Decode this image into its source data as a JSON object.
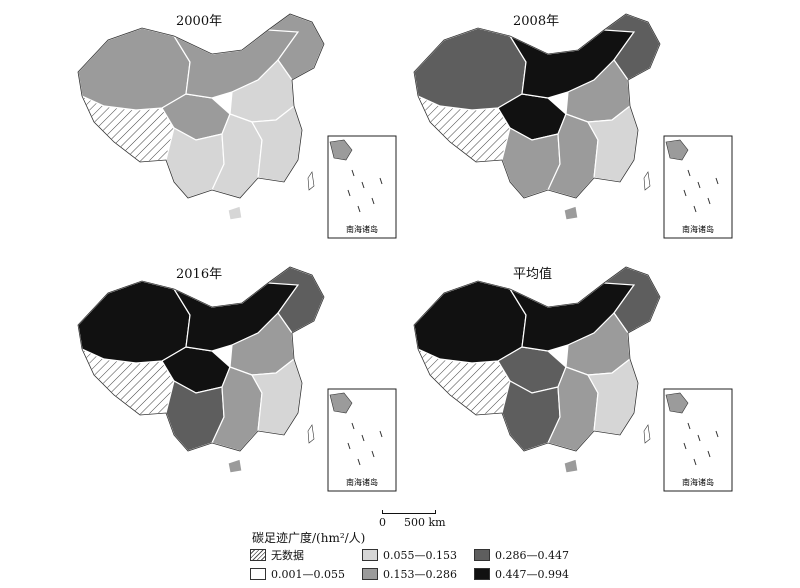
{
  "panels": [
    {
      "title": "2000年",
      "fills": {
        "west": "hatch",
        "xj": "#9b9b9b",
        "nm": "#9b9b9b",
        "ne": "#9b9b9b",
        "qh": "#9b9b9b",
        "nc": "#d6d6d6",
        "ec": "#d6d6d6",
        "sc": "#d6d6d6",
        "sw": "#d6d6d6",
        "hn": "#d6d6d6"
      }
    },
    {
      "title": "2008年",
      "fills": {
        "west": "hatch",
        "xj": "#5e5e5e",
        "nm": "#111111",
        "ne": "#5e5e5e",
        "qh": "#111111",
        "nc": "#9b9b9b",
        "ec": "#d6d6d6",
        "sc": "#9b9b9b",
        "sw": "#9b9b9b",
        "hn": "#9b9b9b"
      }
    },
    {
      "title": "2016年",
      "fills": {
        "west": "hatch",
        "xj": "#111111",
        "nm": "#111111",
        "ne": "#5e5e5e",
        "qh": "#111111",
        "nc": "#9b9b9b",
        "ec": "#d6d6d6",
        "sc": "#9b9b9b",
        "sw": "#5e5e5e",
        "hn": "#9b9b9b"
      }
    },
    {
      "title": "平均值",
      "fills": {
        "west": "hatch",
        "xj": "#111111",
        "nm": "#111111",
        "ne": "#5e5e5e",
        "qh": "#5e5e5e",
        "nc": "#9b9b9b",
        "ec": "#d6d6d6",
        "sc": "#9b9b9b",
        "sw": "#5e5e5e",
        "hn": "#9b9b9b"
      }
    }
  ],
  "inset_label": "南海诸岛",
  "scale": {
    "zero": "0",
    "label": "500 km"
  },
  "legend": {
    "title": "碳足迹广度/(hm²/人)",
    "items": [
      {
        "label": "无数据",
        "fill": "hatch"
      },
      {
        "label": "0.001—0.055",
        "fill": "#ffffff"
      },
      {
        "label": "0.055—0.153",
        "fill": "#d6d6d6"
      },
      {
        "label": "0.153—0.286",
        "fill": "#9b9b9b"
      },
      {
        "label": "0.286—0.447",
        "fill": "#5e5e5e"
      },
      {
        "label": "0.447—0.994",
        "fill": "#111111"
      }
    ]
  }
}
